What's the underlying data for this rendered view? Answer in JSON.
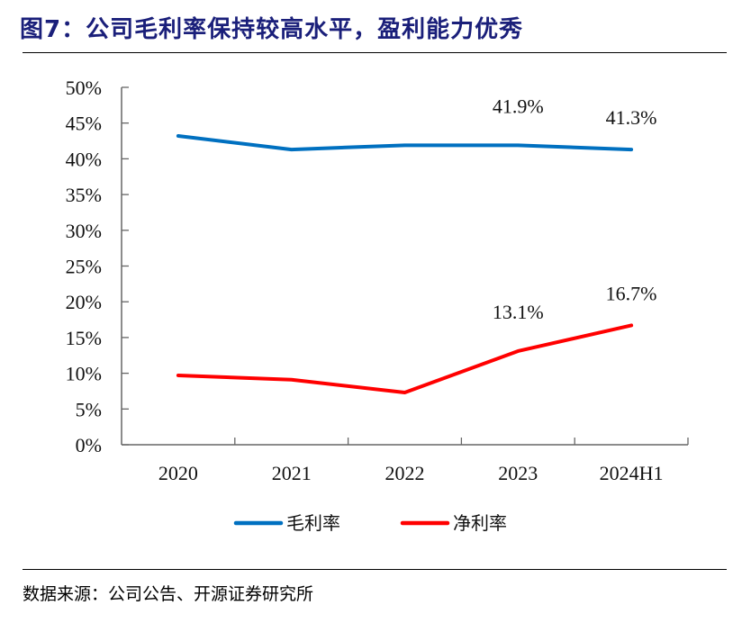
{
  "figure": {
    "title": "图7：公司毛利率保持较高水平，盈利能力优秀",
    "source": "数据来源：公司公告、开源证券研究所"
  },
  "chart_data": {
    "type": "line",
    "title": "图7：公司毛利率保持较高水平，盈利能力优秀",
    "xlabel": "",
    "ylabel": "",
    "categories": [
      "2020",
      "2021",
      "2022",
      "2023",
      "2024H1"
    ],
    "y_ticks": [
      "0%",
      "5%",
      "10%",
      "15%",
      "20%",
      "25%",
      "30%",
      "35%",
      "40%",
      "45%",
      "50%"
    ],
    "ylim": [
      0,
      50
    ],
    "y_unit": "%",
    "grid": false,
    "legend_position": "bottom",
    "series": [
      {
        "name": "毛利率",
        "color": "#0070c0",
        "values": [
          43.2,
          41.3,
          41.9,
          41.9,
          41.3
        ],
        "labels": [
          null,
          null,
          null,
          "41.9%",
          "41.3%"
        ]
      },
      {
        "name": "净利率",
        "color": "#ff0000",
        "values": [
          9.7,
          9.1,
          7.3,
          13.1,
          16.7
        ],
        "labels": [
          null,
          null,
          null,
          "13.1%",
          "16.7%"
        ]
      }
    ]
  }
}
